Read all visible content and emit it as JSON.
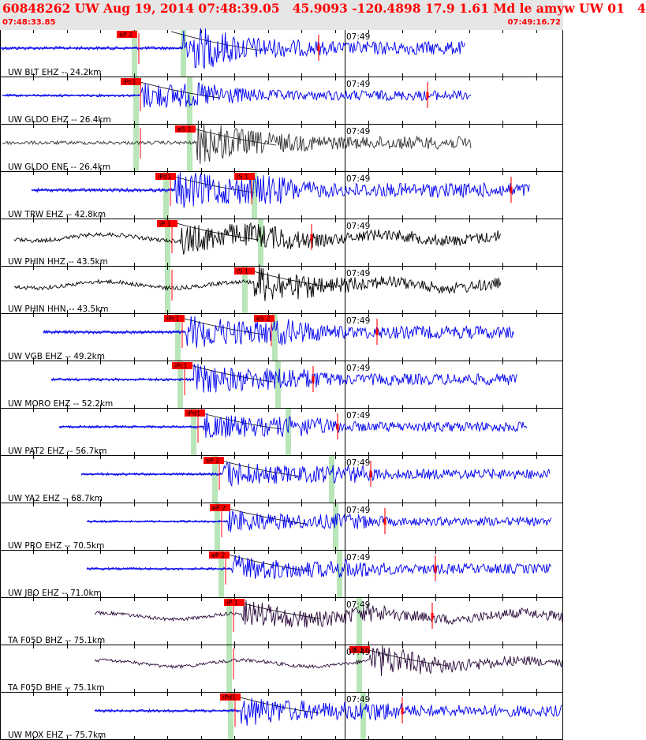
{
  "header": {
    "title": "60848262 UW Aug 19, 2014 07:48:39.05   45.9093 -120.4898 17.9 1.61 Md le amyw UW 01   4",
    "time_start": "07:48:33.85",
    "time_end": "07:49:16.72"
  },
  "colors": {
    "header_bg": "#e6e6e6",
    "header_text": "#ff0000",
    "blue_trace": "#0000ee",
    "black_trace": "#000000",
    "purple_trace": "#2a0a3a",
    "gray_trace": "#303030",
    "pick": "#ff0000",
    "pick_band": "#b8e6b8"
  },
  "chart_data": {
    "type": "line",
    "title": "60848262 UW Aug 19, 2014 07:48:39.05   45.9093 -120.4898 17.9 1.61 Md le amyw UW 01   4",
    "x_range": [
      "07:48:33.85",
      "07:49:16.72"
    ],
    "minute_mark": "07:49",
    "series": [
      {
        "name": "UW BLT EHZ -- 24.2km",
        "color": "blue",
        "p_pick": "eP 2"
      },
      {
        "name": "UW GLDO EHZ -- 26.4km",
        "color": "blue",
        "p_pick": "iPc1"
      },
      {
        "name": "UW GLDO ENE -- 26.4km",
        "color": "gray",
        "p_pick": "eS 2"
      },
      {
        "name": "UW TRW EHZ -- 42.8km",
        "color": "blue",
        "p_pick": "iPd1",
        "s_pick": "iS 1"
      },
      {
        "name": "UW PHIN HHZ -- 43.5km",
        "color": "black",
        "p_pick": "iP 1"
      },
      {
        "name": "UW PHIN HHN -- 43.5km",
        "color": "black",
        "p_pick": "iS 1"
      },
      {
        "name": "UW VGB EHZ -- 49.2km",
        "color": "blue",
        "p_pick": "iPc1",
        "s_pick": "eS 2"
      },
      {
        "name": "UW MORO EHZ -- 52.2km",
        "color": "blue",
        "p_pick": "iPc1"
      },
      {
        "name": "UW PAT2 EHZ -- 56.7km",
        "color": "blue",
        "p_pick": "iPd1"
      },
      {
        "name": "UW YA2 EHZ -- 68.7km",
        "color": "blue",
        "p_pick": "eP 2"
      },
      {
        "name": "UW PRO EHZ -- 70.5km",
        "color": "blue",
        "p_pick": "eP 2"
      },
      {
        "name": "UW JBO EHZ -- 71.0km",
        "color": "blue",
        "p_pick": "eP 2"
      },
      {
        "name": "TA F05D BHZ -- 75.1km",
        "color": "purple",
        "p_pick": "iP 1"
      },
      {
        "name": "TA F05D BHE -- 75.1km",
        "color": "purple",
        "p_pick": "iS 1"
      },
      {
        "name": "UW MOX EHZ -- 75.7km",
        "color": "blue",
        "p_pick": "iPd1"
      }
    ]
  }
}
